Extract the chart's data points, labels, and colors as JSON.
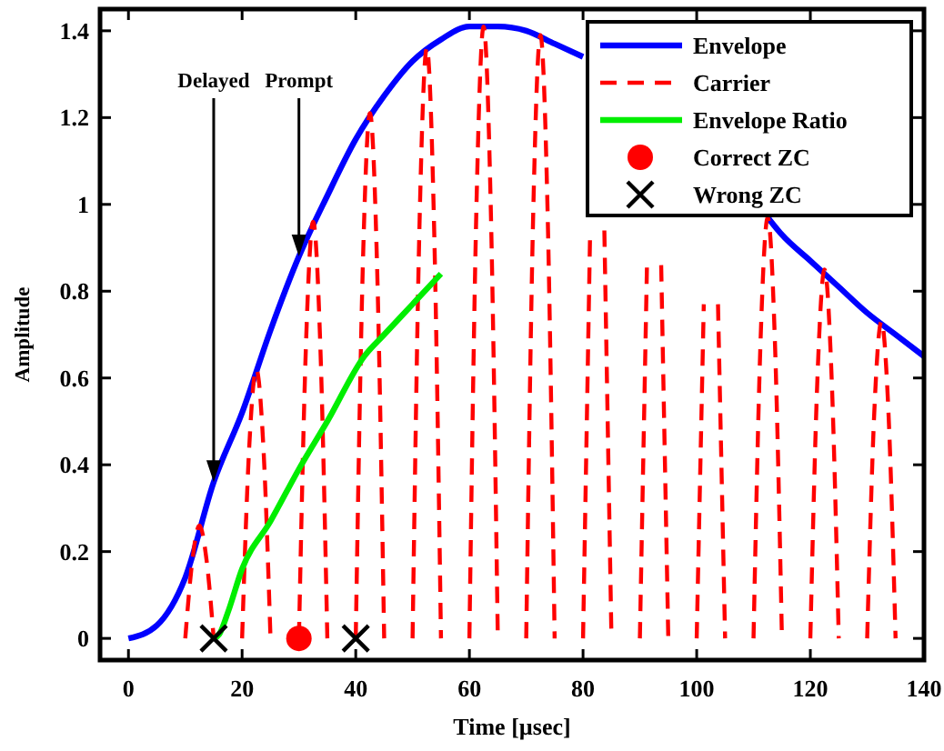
{
  "chart_data": {
    "type": "line",
    "xlabel": "Time [µsec]",
    "ylabel": "Amplitude",
    "xlim": [
      -5,
      140
    ],
    "ylim": [
      -0.05,
      1.45
    ],
    "xticks": [
      0,
      20,
      40,
      60,
      80,
      100,
      120,
      140
    ],
    "yticks": [
      0,
      0.2,
      0.4,
      0.6,
      0.8,
      1,
      1.2,
      1.4
    ],
    "legend": "top right",
    "grid": false,
    "annotations": [
      {
        "text": "Delayed",
        "x": 15,
        "y": 0.36
      },
      {
        "text": "Prompt",
        "x": 30,
        "y": 0.88
      }
    ],
    "series": [
      {
        "name": "Envelope",
        "color": "#0000ff",
        "line_style": "solid",
        "x": [
          0,
          5,
          10,
          15,
          20,
          25,
          30,
          35,
          40,
          45,
          50,
          55,
          60,
          65,
          70,
          75,
          80,
          85,
          90,
          95,
          100,
          105,
          110,
          112.5,
          115,
          120,
          125,
          130,
          135,
          140
        ],
        "values": [
          0,
          0.03,
          0.14,
          0.36,
          0.52,
          0.71,
          0.88,
          1.02,
          1.15,
          1.25,
          1.33,
          1.38,
          1.41,
          1.41,
          1.4,
          1.37,
          1.34,
          null,
          null,
          null,
          null,
          null,
          null,
          0.97,
          0.93,
          0.87,
          0.81,
          0.75,
          0.7,
          0.65
        ]
      },
      {
        "name": "Carrier",
        "color": "#ff0000",
        "line_style": "dashed",
        "x": [
          10,
          11.25,
          12.5,
          13.75,
          15,
          17.5,
          20,
          21.25,
          22.5,
          23.75,
          25,
          27.5,
          30,
          31.25,
          32.5,
          33.75,
          35,
          37.5,
          40,
          41.25,
          42.5,
          43.75,
          45,
          47.5,
          50,
          51.25,
          52.5,
          53.75,
          55,
          57.5,
          60,
          61.25,
          62.5,
          63.75,
          65,
          67.5,
          70,
          71.25,
          72.5,
          73.75,
          75,
          77.5,
          80,
          81.25,
          82.5,
          83.75,
          85,
          87.5,
          90,
          91.25,
          92.5,
          93.75,
          95,
          97.5,
          100,
          101.25,
          102.5,
          103.75,
          105,
          107.5,
          110,
          111.25,
          112.5,
          113.75,
          115,
          117.5,
          120,
          121.25,
          122.5,
          123.75,
          125,
          127.5,
          130,
          131.25,
          132.5,
          133.75,
          135
        ],
        "values": [
          0,
          0.18,
          0.26,
          0.18,
          0,
          null,
          0,
          0.44,
          0.62,
          0.44,
          0,
          null,
          0,
          0.68,
          0.96,
          0.68,
          0,
          null,
          0,
          0.86,
          1.21,
          0.86,
          0,
          null,
          0,
          0.97,
          1.36,
          0.97,
          0,
          null,
          0,
          1,
          1.41,
          1,
          0,
          null,
          0,
          0.99,
          1.39,
          0.99,
          0,
          null,
          0,
          0.94,
          null,
          0.94,
          0,
          null,
          0,
          0.86,
          null,
          0.86,
          0,
          null,
          0,
          0.77,
          null,
          0.77,
          0,
          null,
          0,
          0.69,
          0.97,
          0.69,
          0,
          null,
          0,
          0.6,
          0.85,
          0.6,
          0,
          null,
          0,
          0.52,
          0.73,
          0.52,
          0
        ]
      },
      {
        "name": "Envelope Ratio",
        "color": "#00ee00",
        "line_style": "solid",
        "x": [
          15,
          16,
          17.5,
          20,
          25,
          30,
          35,
          41.5,
          45,
          50,
          55
        ],
        "values": [
          0,
          0.01,
          0.06,
          0.16,
          0.27,
          0.39,
          0.5,
          0.65,
          0.7,
          0.77,
          0.84
        ]
      },
      {
        "name": "Correct ZC",
        "type": "scatter",
        "color": "#ff0000",
        "marker": "circle",
        "x": [
          30
        ],
        "values": [
          0
        ]
      },
      {
        "name": "Wrong ZC",
        "type": "scatter",
        "color": "#000000",
        "marker": "cross",
        "x": [
          15,
          40
        ],
        "values": [
          0,
          0
        ]
      }
    ]
  }
}
